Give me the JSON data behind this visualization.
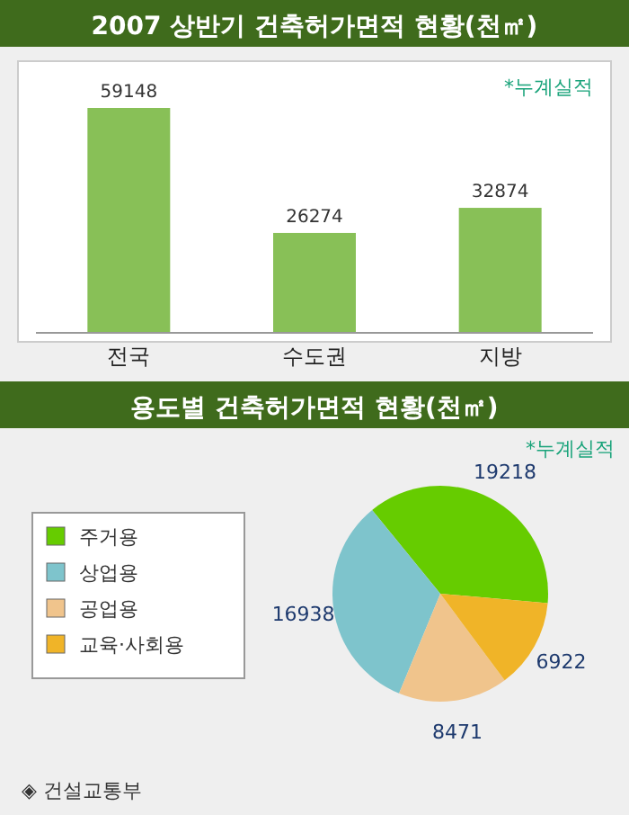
{
  "chart_data": [
    {
      "type": "bar",
      "title": "2007 상반기 건축허가면적 현황(천㎡)",
      "categories": [
        "전국",
        "수도권",
        "지방"
      ],
      "values": [
        59148,
        26274,
        32874
      ],
      "color": "#88c057",
      "data_labels": true,
      "annotations": [
        "*누계실적"
      ]
    },
    {
      "type": "pie",
      "title": "용도별 건축허가면적 현황(천㎡)",
      "categories": [
        "주거용",
        "상업용",
        "공업용",
        "교육·사회용"
      ],
      "values": [
        19218,
        16938,
        8471,
        6922
      ],
      "colors": [
        "#66cc00",
        "#7ec4cc",
        "#f0c48c",
        "#f0b428"
      ],
      "data_labels": true,
      "legend": "left",
      "annotations": [
        "*누계실적",
        "◈ 건설교통부"
      ]
    }
  ]
}
